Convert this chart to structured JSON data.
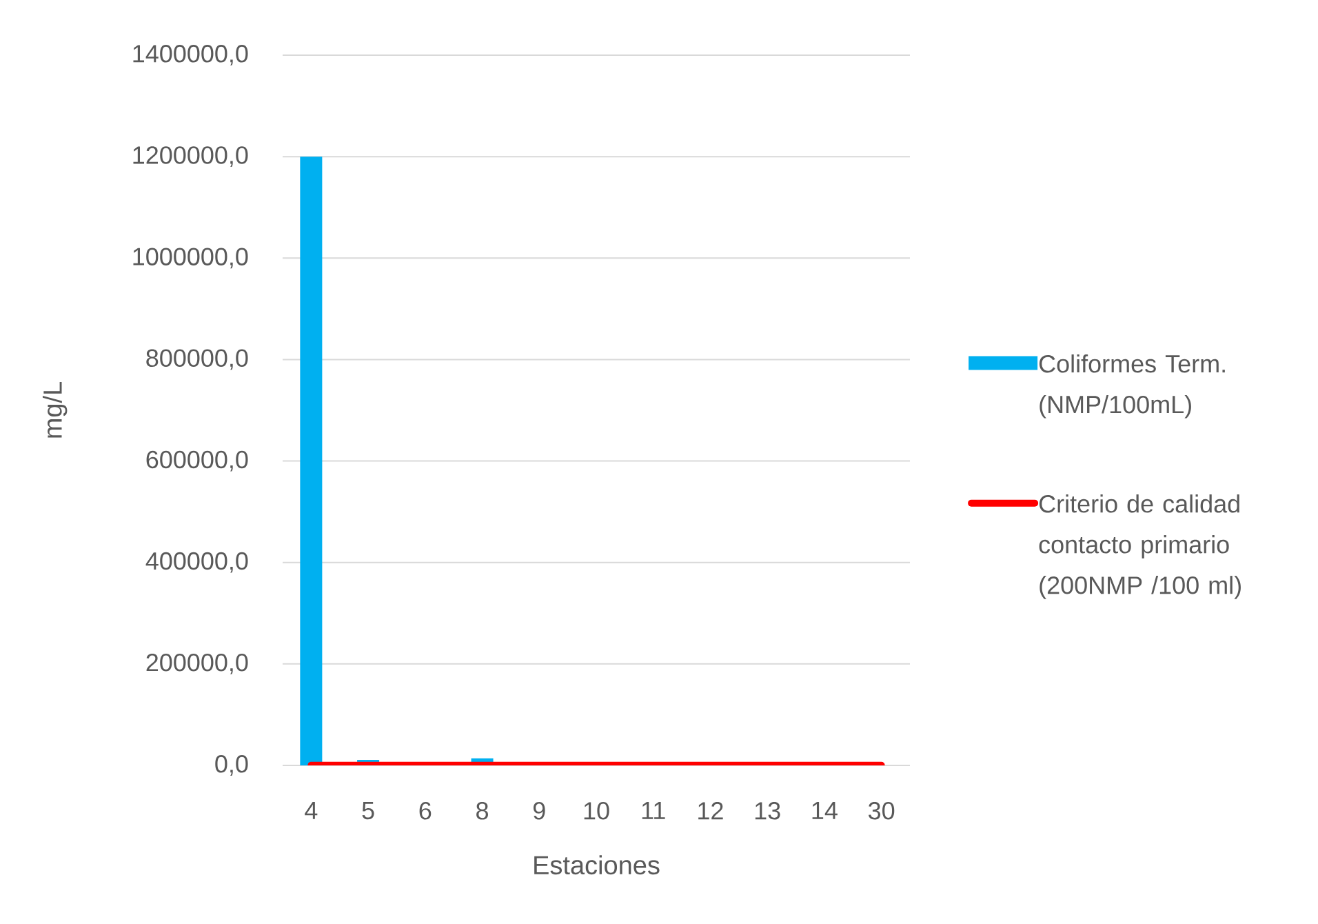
{
  "chart_data": {
    "type": "bar",
    "xlabel": "Estaciones",
    "ylabel": "mg/L",
    "categories": [
      "4",
      "5",
      "6",
      "8",
      "9",
      "10",
      "11",
      "12",
      "13",
      "14",
      "30"
    ],
    "series": [
      {
        "name": "Coliformes Term. (NMP/100mL)",
        "color": "#00b0f0",
        "values": [
          1200000,
          11000,
          null,
          14000,
          null,
          null,
          null,
          null,
          null,
          null,
          null
        ]
      },
      {
        "name": "Criterio de calidad contacto primario (200NMP /100 ml)",
        "type": "line",
        "color": "#ff0000",
        "line_style": "solid",
        "values": [
          200,
          200,
          200,
          200,
          200,
          200,
          200,
          200,
          200,
          200,
          200
        ]
      }
    ],
    "ylim": [
      0,
      1400000
    ],
    "yticks": [
      {
        "value": 0,
        "label": "0,0"
      },
      {
        "value": 200000,
        "label": "200000,0"
      },
      {
        "value": 400000,
        "label": "400000,0"
      },
      {
        "value": 600000,
        "label": "600000,0"
      },
      {
        "value": 800000,
        "label": "800000,0"
      },
      {
        "value": 1000000,
        "label": "1000000,0"
      },
      {
        "value": 1200000,
        "label": "1200000,0"
      },
      {
        "value": 1400000,
        "label": "1400000,0"
      }
    ],
    "grid": "y",
    "legend": "right"
  }
}
